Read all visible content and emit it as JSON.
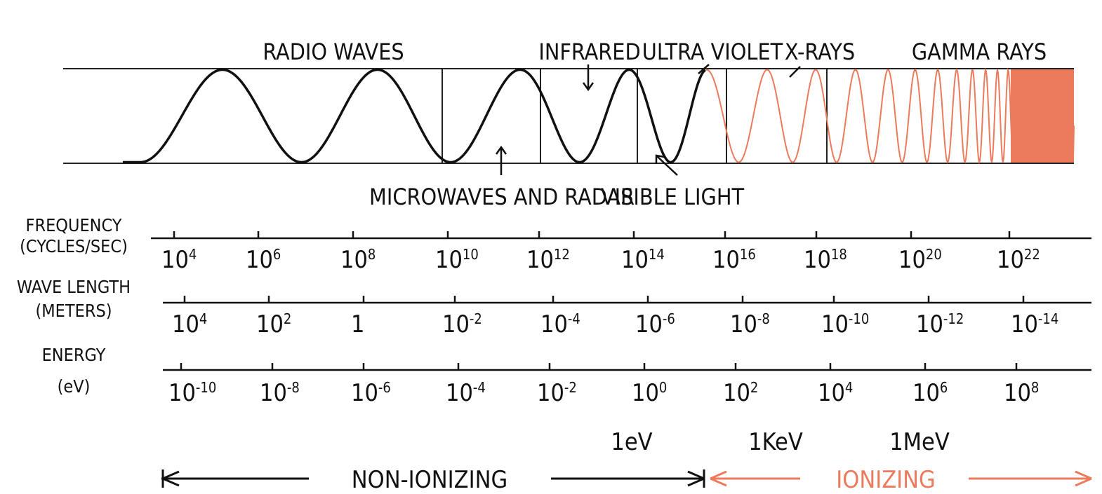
{
  "bands": [
    {
      "label": "RADIO WAVES"
    },
    {
      "label": "INFRARED"
    },
    {
      "label": "ULTRA VIOLET"
    },
    {
      "label": "X-RAYS"
    },
    {
      "label": "GAMMA RAYS"
    },
    {
      "label": "MICROWAVES AND RADAR"
    },
    {
      "label": "VISIBLE LIGHT"
    }
  ],
  "scales": [
    {
      "label": "FREQUENCY (CYCLES/SEC)",
      "ticks": [
        {
          "base": "10",
          "exp": "4"
        },
        {
          "base": "10",
          "exp": "6"
        },
        {
          "base": "10",
          "exp": "8"
        },
        {
          "base": "10",
          "exp": "10"
        },
        {
          "base": "10",
          "exp": "12"
        },
        {
          "base": "10",
          "exp": "14"
        },
        {
          "base": "10",
          "exp": "16"
        },
        {
          "base": "10",
          "exp": "18"
        },
        {
          "base": "10",
          "exp": "20"
        },
        {
          "base": "10",
          "exp": "22"
        }
      ]
    },
    {
      "label": "WAVE LENGTH (METERS)",
      "ticks": [
        {
          "base": "10",
          "exp": "4"
        },
        {
          "base": "10",
          "exp": "2"
        },
        {
          "base": "1"
        },
        {
          "base": "10",
          "exp": "-2"
        },
        {
          "base": "10",
          "exp": "-4"
        },
        {
          "base": "10",
          "exp": "-6"
        },
        {
          "base": "10",
          "exp": "-8"
        },
        {
          "base": "10",
          "exp": "-10"
        },
        {
          "base": "10",
          "exp": "-12"
        },
        {
          "base": "10",
          "exp": "-14"
        }
      ]
    },
    {
      "label": "ENERGY (eV)",
      "ticks": [
        {
          "base": "10",
          "exp": "-10"
        },
        {
          "base": "10",
          "exp": "-8"
        },
        {
          "base": "10",
          "exp": "-6"
        },
        {
          "base": "10",
          "exp": "-4"
        },
        {
          "base": "10",
          "exp": "-2"
        },
        {
          "base": "10",
          "exp": "0"
        },
        {
          "base": "10",
          "exp": "2"
        },
        {
          "base": "10",
          "exp": "4"
        },
        {
          "base": "10",
          "exp": "6"
        },
        {
          "base": "10",
          "exp": "8"
        }
      ]
    }
  ],
  "energy_units": [
    "1eV",
    "1KeV",
    "1MeV"
  ],
  "regions": {
    "non_ionizing": "NON-IONIZING",
    "ionizing": "IONIZING"
  }
}
